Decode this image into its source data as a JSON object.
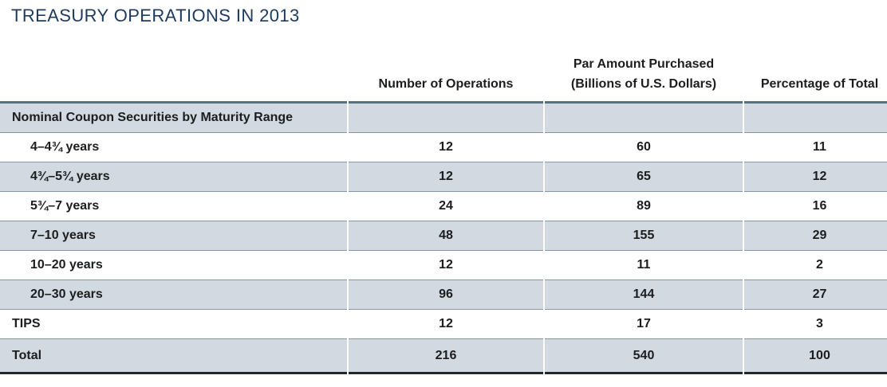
{
  "title": "TREASURY OPERATIONS IN 2013",
  "colors": {
    "title_text": "#1c3a5e",
    "header_rule": "#56707f",
    "row_rule": "#8397a9",
    "shaded_row_bg": "#d2d9e0",
    "bottom_rule": "#24282c",
    "body_text": "#1b1d1f"
  },
  "table": {
    "headers": {
      "label": "",
      "operations": "Number of Operations",
      "par_amount": "Par Amount Purchased\n(Billions of U.S. Dollars)",
      "percentage": "Percentage of Total"
    },
    "section_header": "Nominal Coupon Securities by Maturity Range",
    "rows": [
      {
        "label": "4–4¾ years",
        "operations": "12",
        "par_amount": "60",
        "percentage": "11"
      },
      {
        "label": "4¾–5¾ years",
        "operations": "12",
        "par_amount": "65",
        "percentage": "12"
      },
      {
        "label": "5¾–7 years",
        "operations": "24",
        "par_amount": "89",
        "percentage": "16"
      },
      {
        "label": "7–10 years",
        "operations": "48",
        "par_amount": "155",
        "percentage": "29"
      },
      {
        "label": "10–20 years",
        "operations": "12",
        "par_amount": "11",
        "percentage": "2"
      },
      {
        "label": "20–30 years",
        "operations": "96",
        "par_amount": "144",
        "percentage": "27"
      },
      {
        "label": "TIPS",
        "operations": "12",
        "par_amount": "17",
        "percentage": "3"
      }
    ],
    "total_row": {
      "label": "Total",
      "operations": "216",
      "par_amount": "540",
      "percentage": "100"
    }
  },
  "chart_data": {
    "type": "table",
    "title": "TREASURY OPERATIONS IN 2013",
    "columns": [
      "Number of Operations",
      "Par Amount Purchased (Billions of U.S. Dollars)",
      "Percentage of Total"
    ],
    "section": "Nominal Coupon Securities by Maturity Range",
    "rows": [
      {
        "label": "4–4¾ years",
        "operations": 12,
        "par_amount": 60,
        "percentage": 11
      },
      {
        "label": "4¾–5¾ years",
        "operations": 12,
        "par_amount": 65,
        "percentage": 12
      },
      {
        "label": "5¾–7 years",
        "operations": 24,
        "par_amount": 89,
        "percentage": 16
      },
      {
        "label": "7–10 years",
        "operations": 48,
        "par_amount": 155,
        "percentage": 29
      },
      {
        "label": "10–20 years",
        "operations": 12,
        "par_amount": 11,
        "percentage": 2
      },
      {
        "label": "20–30 years",
        "operations": 96,
        "par_amount": 144,
        "percentage": 27
      },
      {
        "label": "TIPS",
        "operations": 12,
        "par_amount": 17,
        "percentage": 3
      },
      {
        "label": "Total",
        "operations": 216,
        "par_amount": 540,
        "percentage": 100
      }
    ]
  }
}
